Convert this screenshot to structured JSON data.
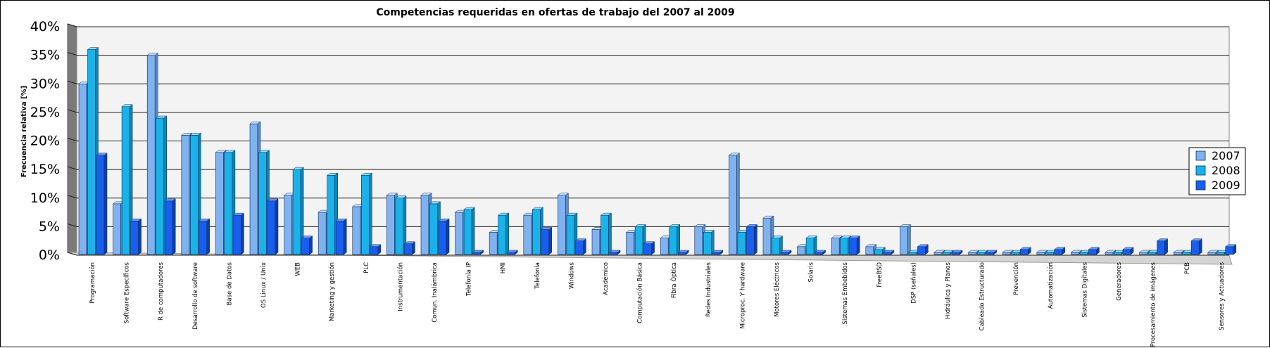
{
  "chart_data": {
    "type": "bar",
    "title": "Competencias requeridas en ofertas de trabajo del 2007 al 2009",
    "xlabel": "",
    "ylabel": "Frecuencia relativa [%]",
    "ylim": [
      0,
      40
    ],
    "yticks": [
      "0%",
      "5%",
      "10%",
      "15%",
      "20%",
      "25%",
      "30%",
      "35%",
      "40%"
    ],
    "grid": true,
    "legend_position": "right",
    "categories": [
      "Programación",
      "Software Específicos",
      "R de computadores",
      "Desarrollo de software",
      "Base de Datos",
      "OS Linux / Unix",
      "WEB",
      "Marketing y gestión",
      "PLC",
      "Instrumentación",
      "Comun. Inalámbrica",
      "Telefonía IP",
      "HMI",
      "Telefonía",
      "Windows",
      "Académico",
      "Computación Básica",
      "Fibra Óptica",
      "Redes Industriales",
      "Microproc. Y hardware",
      "Motores Eléctricos",
      "Solaris",
      "Sistemas Embebidos",
      "FreeBSD",
      "DSP (señales)",
      "Hidráulica y Planos",
      "Cableado Estructurado",
      "Prevención",
      "Automatización",
      "Sistemas Digitales",
      "Generadores",
      "Procesamiento de imágenes",
      "PCB",
      "Sensores y Actuadores"
    ],
    "series": [
      {
        "name": "2007",
        "color": "#7fb2ef",
        "top": "#c5def9",
        "side": "#5a8cc8",
        "values": [
          30,
          9,
          35,
          21,
          18,
          23,
          10.5,
          7.5,
          8.5,
          10.5,
          10.5,
          7.5,
          4,
          7,
          10.5,
          4.5,
          4,
          3,
          5,
          17.5,
          6.5,
          1.5,
          3,
          1.5,
          5,
          0,
          0,
          0,
          0,
          0,
          0,
          0,
          0,
          0
        ]
      },
      {
        "name": "2008",
        "color": "#19b3ea",
        "top": "#8ee0fb",
        "side": "#0d85b3",
        "values": [
          36,
          26,
          24,
          21,
          18,
          18,
          15,
          14,
          14,
          10,
          9,
          8,
          7,
          8,
          7,
          7,
          5,
          5,
          4,
          4,
          3,
          3,
          3,
          1,
          0,
          0,
          0,
          0,
          0,
          0,
          0,
          0,
          0,
          0
        ]
      },
      {
        "name": "2009",
        "color": "#1a5ef0",
        "top": "#6f9bf7",
        "side": "#0d3fa8",
        "values": [
          17.5,
          6,
          9.5,
          6,
          7,
          9.5,
          3,
          6,
          1.5,
          2,
          6,
          0,
          0,
          4.5,
          2.5,
          0.5,
          2,
          0,
          0,
          5,
          0,
          0,
          3,
          0,
          1.5,
          0.5,
          0.5,
          1,
          1,
          1,
          1,
          2.5,
          2.5,
          1.5
        ]
      }
    ]
  }
}
